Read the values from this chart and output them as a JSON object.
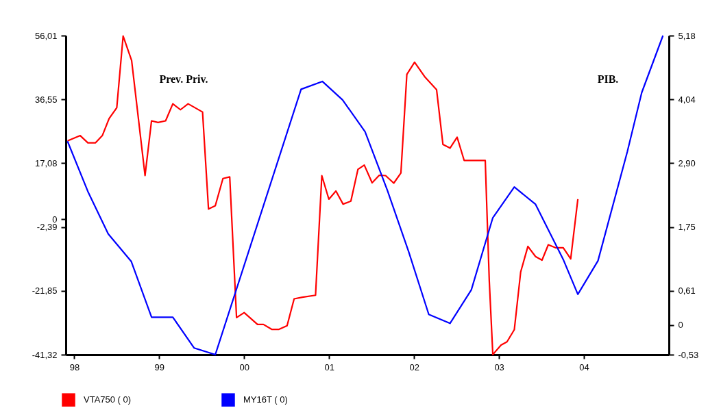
{
  "chart_data": {
    "type": "line",
    "legend": "bottom left",
    "line_style": "solid",
    "annotations": [
      "Prev. Priv.",
      "PIB."
    ],
    "xlim": [
      1997.9,
      2005.0
    ],
    "xticks": [
      {
        "value": 1998,
        "label": "98"
      },
      {
        "value": 1999,
        "label": "99"
      },
      {
        "value": 2000,
        "label": "00"
      },
      {
        "value": 2001,
        "label": "01"
      },
      {
        "value": 2002,
        "label": "02"
      },
      {
        "value": 2003,
        "label": "03"
      },
      {
        "value": 2004,
        "label": "04"
      }
    ],
    "ylim": [
      -41.32,
      56.01
    ],
    "yticks": [
      {
        "value": 56.01,
        "label": "56,01"
      },
      {
        "value": 36.55,
        "label": "36,55"
      },
      {
        "value": 17.08,
        "label": "17,08"
      },
      0,
      {
        "value": -2.39,
        "label": "-2,39"
      },
      {
        "value": -21.85,
        "label": "-21,85"
      },
      {
        "value": -41.32,
        "label": "-41,32"
      }
    ],
    "y2lim": [
      -0.53,
      5.18
    ],
    "y2ticks": [
      {
        "value": 5.18,
        "label": "5,18"
      },
      {
        "value": 4.04,
        "label": "4,04"
      },
      {
        "value": 2.9,
        "label": "2,90"
      },
      {
        "value": 1.75,
        "label": "1,75"
      },
      {
        "value": 0.61,
        "label": "0,61"
      },
      0,
      {
        "value": -0.53,
        "label": "-0,53"
      }
    ],
    "series": [
      {
        "name": "VTA750 ( 0)",
        "color": "#ff0000",
        "x": [
          1997.92,
          1998.07,
          1998.16,
          1998.25,
          1998.33,
          1998.41,
          1998.5,
          1998.575,
          1998.675,
          1998.833,
          1998.909,
          1998.986,
          1999.075,
          1999.16,
          1999.25,
          1999.34,
          1999.51,
          1999.58,
          1999.66,
          1999.75,
          1999.83,
          1999.91,
          2000.0,
          2000.157,
          2000.227,
          2000.324,
          2000.41,
          2000.505,
          2000.588,
          2000.685,
          2000.84,
          2000.914,
          2000.997,
          2001.08,
          2001.164,
          2001.256,
          2001.339,
          2001.414,
          2001.506,
          2001.59,
          2001.665,
          2001.761,
          2001.845,
          2001.915,
          2002.006,
          2002.13,
          2002.265,
          2002.34,
          2002.423,
          2002.507,
          2002.59,
          2002.838,
          2002.857,
          2002.885,
          2002.927,
          2003.024,
          2003.094,
          2003.18,
          2003.255,
          2003.34,
          2003.43,
          2003.506,
          2003.58,
          2003.664,
          2003.756,
          2003.844,
          2003.928
        ],
        "values": [
          23.9,
          25.5,
          23.3,
          23.3,
          25.5,
          30.7,
          34.0,
          55.9,
          48.4,
          13.3,
          30.0,
          29.5,
          30.0,
          35.2,
          33.4,
          35.2,
          32.7,
          3.1,
          4.1,
          12.4,
          12.9,
          -30.0,
          -28.5,
          -32.1,
          -32.1,
          -33.6,
          -33.6,
          -32.5,
          -24.3,
          -23.8,
          -23.2,
          13.3,
          6.1,
          8.6,
          4.6,
          5.5,
          15.2,
          16.5,
          11.1,
          13.4,
          13.3,
          11.0,
          14.1,
          44.2,
          47.9,
          43.3,
          39.5,
          22.8,
          21.7,
          25.0,
          17.9,
          17.9,
          3.0,
          -18.6,
          -41.3,
          -38.4,
          -37.4,
          -33.7,
          -16.1,
          -8.3,
          -11.4,
          -12.5,
          -7.8,
          -8.7,
          -8.7,
          -12.1,
          6.1
        ]
      },
      {
        "name": "MY16T ( 0)",
        "color": "#0000ff",
        "axis": "y2",
        "x": [
          1997.92,
          1998.16,
          1998.4,
          1998.67,
          1998.91,
          1999.16,
          1999.41,
          1999.66,
          2000.67,
          2000.92,
          2001.158,
          2001.423,
          2001.686,
          2001.937,
          2002.173,
          2002.423,
          2002.674,
          2002.927,
          2003.18,
          2003.43,
          2003.76,
          2003.928,
          2004.165,
          2004.51,
          2004.68,
          2004.93
        ],
        "values": [
          3.29,
          2.39,
          1.63,
          1.14,
          0.14,
          0.14,
          -0.41,
          -0.53,
          4.22,
          4.36,
          4.03,
          3.46,
          2.41,
          1.31,
          0.19,
          0.03,
          0.63,
          1.92,
          2.47,
          2.16,
          1.16,
          0.55,
          1.15,
          3.1,
          4.16,
          5.18
        ]
      }
    ]
  }
}
